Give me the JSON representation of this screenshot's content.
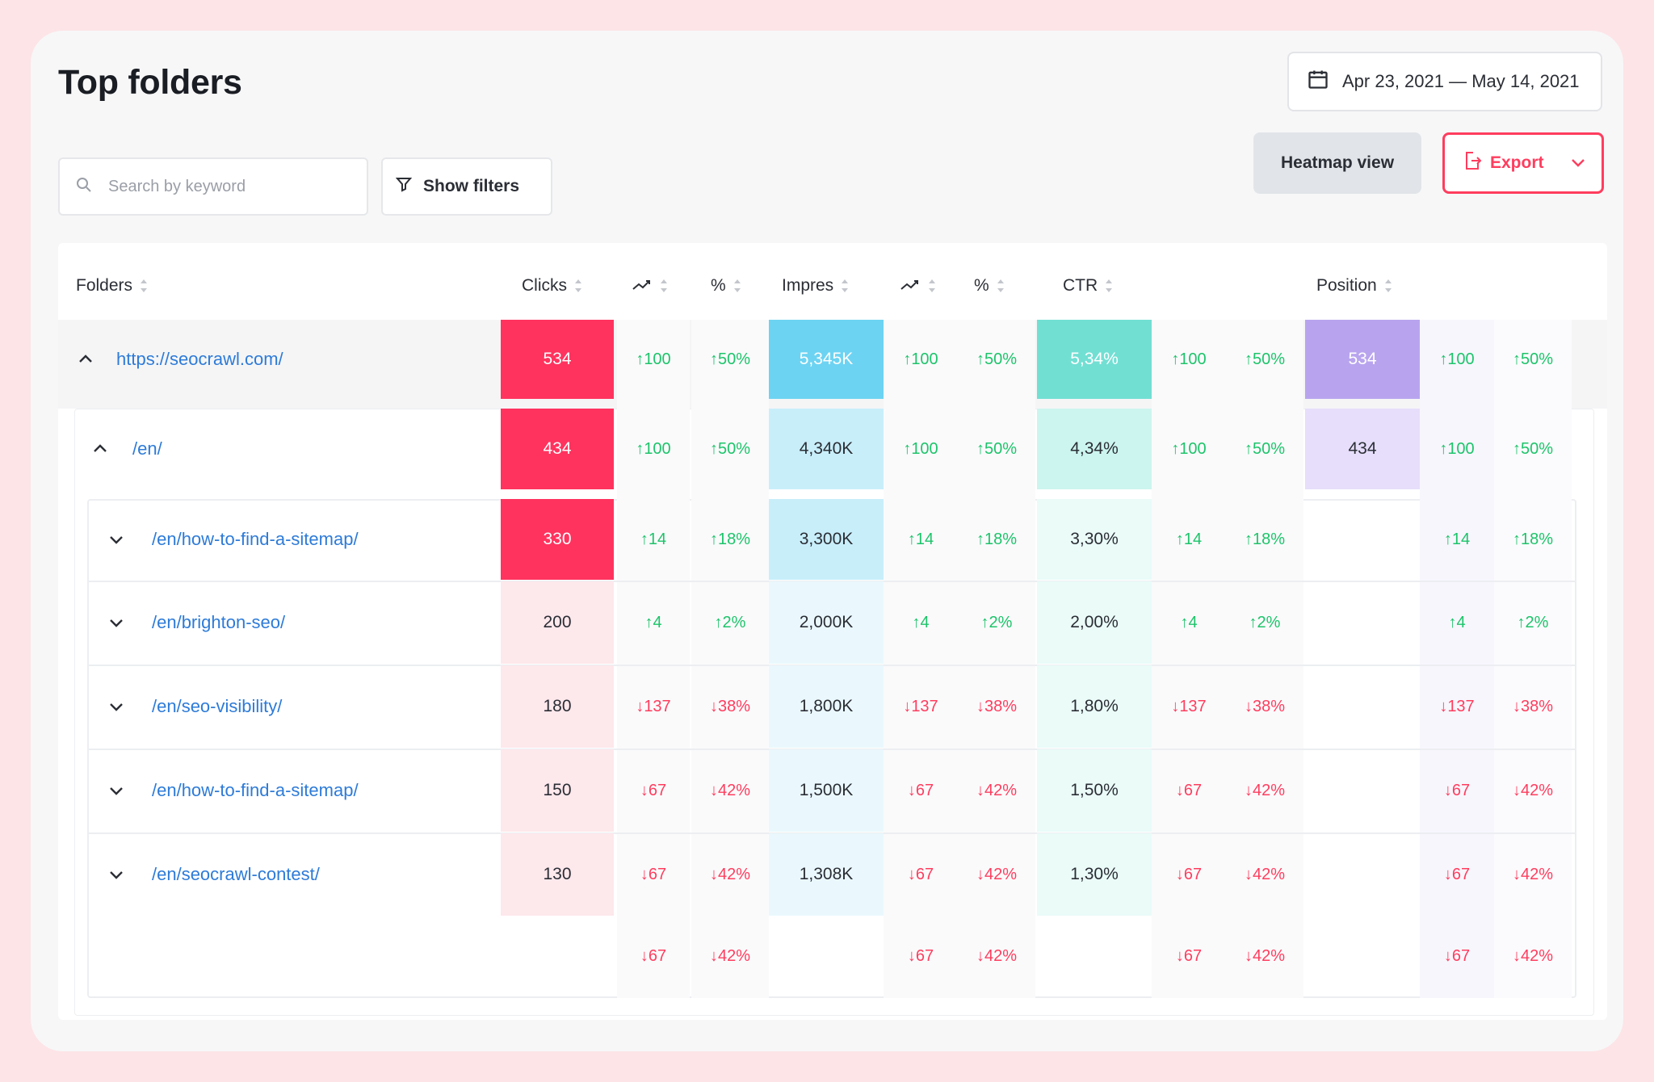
{
  "title": "Top folders",
  "date_range": "Apr 23, 2021 — May 14, 2021",
  "buttons": {
    "heatmap": "Heatmap view",
    "export": "Export",
    "filters": "Show filters"
  },
  "search": {
    "placeholder": "Search by keyword",
    "value": ""
  },
  "columns": [
    "Folders",
    "Clicks",
    "",
    "%",
    "Impres",
    "",
    "%",
    "CTR",
    "",
    "",
    "Position",
    "",
    ""
  ],
  "colors": {
    "clicks_strong": "#ff335e",
    "clicks_light": "#fde8ec",
    "impres_strong": "#6dd3f2",
    "impres_mid": "#c8eefa",
    "impres_light": "#eaf8fd",
    "ctr_strong": "#72dfd3",
    "ctr_mid": "#ccf5ef",
    "ctr_light": "#eafbf8",
    "pos_strong": "#b8a4ee",
    "pos_mid": "#e6defa",
    "up": "#1dc46a",
    "down": "#ff3d5e",
    "link": "#2d7bd8"
  },
  "rows": [
    {
      "folder": "https://seocrawl.com/",
      "expanded": true,
      "level": 0,
      "clicks": "534",
      "clicks_d": "100",
      "clicks_p": "50%",
      "dir": "up",
      "impres": "5,345K",
      "impres_d": "100",
      "impres_p": "50%",
      "ctr": "5,34%",
      "ctr_d": "100",
      "ctr_p": "50%",
      "position": "534",
      "pos_d": "100",
      "pos_p": "50%"
    },
    {
      "folder": "/en/",
      "expanded": true,
      "level": 1,
      "clicks": "434",
      "clicks_d": "100",
      "clicks_p": "50%",
      "dir": "up",
      "impres": "4,340K",
      "impres_d": "100",
      "impres_p": "50%",
      "ctr": "4,34%",
      "ctr_d": "100",
      "ctr_p": "50%",
      "position": "434",
      "pos_d": "100",
      "pos_p": "50%"
    },
    {
      "folder": "/en/how-to-find-a-sitemap/",
      "expanded": false,
      "level": 2,
      "clicks": "330",
      "clicks_d": "14",
      "clicks_p": "18%",
      "dir": "up",
      "impres": "3,300K",
      "impres_d": "14",
      "impres_p": "18%",
      "ctr": "3,30%",
      "ctr_d": "14",
      "ctr_p": "18%",
      "position": "",
      "pos_d": "14",
      "pos_p": "18%"
    },
    {
      "folder": "/en/brighton-seo/",
      "expanded": false,
      "level": 2,
      "clicks": "200",
      "clicks_d": "4",
      "clicks_p": "2%",
      "dir": "up",
      "impres": "2,000K",
      "impres_d": "4",
      "impres_p": "2%",
      "ctr": "2,00%",
      "ctr_d": "4",
      "ctr_p": "2%",
      "position": "",
      "pos_d": "4",
      "pos_p": "2%"
    },
    {
      "folder": "/en/seo-visibility/",
      "expanded": false,
      "level": 2,
      "clicks": "180",
      "clicks_d": "137",
      "clicks_p": "38%",
      "dir": "down",
      "impres": "1,800K",
      "impres_d": "137",
      "impres_p": "38%",
      "ctr": "1,80%",
      "ctr_d": "137",
      "ctr_p": "38%",
      "position": "",
      "pos_d": "137",
      "pos_p": "38%"
    },
    {
      "folder": "/en/how-to-find-a-sitemap/",
      "expanded": false,
      "level": 2,
      "clicks": "150",
      "clicks_d": "67",
      "clicks_p": "42%",
      "dir": "down",
      "impres": "1,500K",
      "impres_d": "67",
      "impres_p": "42%",
      "ctr": "1,50%",
      "ctr_d": "67",
      "ctr_p": "42%",
      "position": "",
      "pos_d": "67",
      "pos_p": "42%"
    },
    {
      "folder": "/en/seocrawl-contest/",
      "expanded": false,
      "level": 2,
      "clicks": "130",
      "clicks_d": "67",
      "clicks_p": "42%",
      "dir": "down",
      "impres": "1,308K",
      "impres_d": "67",
      "impres_p": "42%",
      "ctr": "1,30%",
      "ctr_d": "67",
      "ctr_p": "42%",
      "position": "",
      "pos_d": "67",
      "pos_p": "42%"
    },
    {
      "folder": "",
      "expanded": null,
      "level": 2,
      "clicks": "",
      "clicks_d": "67",
      "clicks_p": "42%",
      "dir": "down",
      "impres": "",
      "impres_d": "67",
      "impres_p": "42%",
      "ctr": "",
      "ctr_d": "67",
      "ctr_p": "42%",
      "position": "",
      "pos_d": "67",
      "pos_p": "42%"
    }
  ]
}
